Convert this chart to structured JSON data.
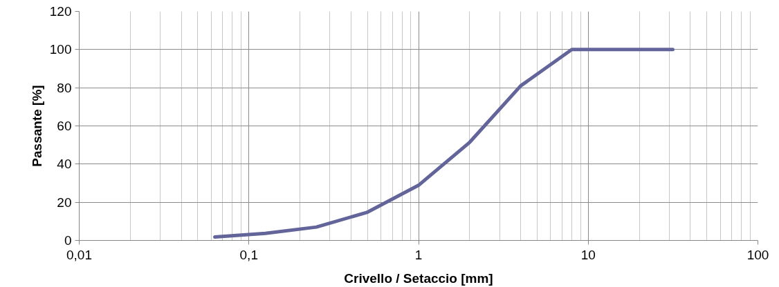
{
  "chart_data": {
    "type": "line",
    "xlabel": "Crivello / Setaccio [mm]",
    "ylabel": "Passante [%]",
    "x": [
      0.063,
      0.125,
      0.25,
      0.5,
      1,
      2,
      4,
      8,
      31.5
    ],
    "series": [
      {
        "color": "#62649a",
        "values": [
          1.8,
          3.7,
          7,
          14.8,
          28.9,
          51.4,
          81,
          100,
          100
        ]
      }
    ],
    "log": "x",
    "xlim": [
      0.01,
      100
    ],
    "xticks": [
      {
        "value": 0.01,
        "label": "0,01"
      },
      {
        "value": 0.1,
        "label": "0,1"
      },
      1,
      10,
      100
    ],
    "ylim": [
      0,
      120
    ],
    "yticks": [
      0,
      20,
      40,
      60,
      80,
      100,
      120
    ],
    "grid": true,
    "marker": "none",
    "line_style": "solid"
  }
}
